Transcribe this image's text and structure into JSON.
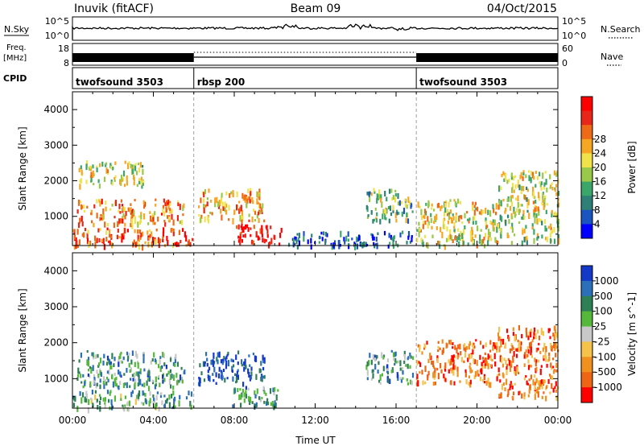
{
  "header": {
    "title": "Inuvik (fitACF)",
    "beam": "Beam 09",
    "date": "04/Oct/2015"
  },
  "top_panels": {
    "nsky": {
      "label": "N.Sky",
      "left_ticks": [
        "10^5",
        "10^0"
      ],
      "right_label": "N.Search",
      "right_ticks": [
        "10^5",
        "10^0"
      ]
    },
    "freq": {
      "label_line1": "Freq.",
      "label_line2": "[MHz]",
      "left_ticks": [
        "18",
        "8"
      ],
      "right_label": "Nave",
      "right_ticks": [
        "60",
        "0"
      ]
    },
    "cpid": {
      "label": "CPID",
      "segments": [
        {
          "name": "twofsound 3503",
          "start_hour": 0
        },
        {
          "name": "rbsp 200",
          "start_hour": 6
        },
        {
          "name": "twofsound 3503",
          "start_hour": 17
        }
      ]
    }
  },
  "chart_data": [
    {
      "type": "heatmap",
      "name": "power",
      "ylabel": "Slant Range [km]",
      "xlabel": "",
      "x_range_hours": [
        0,
        24
      ],
      "ylim": [
        180,
        4500
      ],
      "y_ticks": [
        1000,
        2000,
        3000,
        4000
      ],
      "colorbar": {
        "label": "Power [dB]",
        "ticks": [
          "4",
          "8",
          "12",
          "16",
          "20",
          "24",
          "28"
        ],
        "colors": [
          "#0000ff",
          "#1a54c0",
          "#2e7f76",
          "#3ca56a",
          "#9ac94a",
          "#f2e24a",
          "#f5a623",
          "#ef6a17",
          "#e8271a",
          "#ff0000"
        ]
      },
      "regions": [
        {
          "t0": 0.0,
          "t1": 5.9,
          "r0": 200,
          "r1": 700,
          "level": 0.8
        },
        {
          "t0": 0.2,
          "t1": 5.5,
          "r0": 800,
          "r1": 1500,
          "level": 0.7
        },
        {
          "t0": 0.3,
          "t1": 3.5,
          "r0": 1900,
          "r1": 2600,
          "level": 0.5
        },
        {
          "t0": 6.2,
          "t1": 9.5,
          "r0": 900,
          "r1": 1800,
          "level": 0.65
        },
        {
          "t0": 7.8,
          "t1": 10.3,
          "r0": 250,
          "r1": 800,
          "level": 0.95
        },
        {
          "t0": 10.5,
          "t1": 16.8,
          "r0": 200,
          "r1": 600,
          "level": 0.15
        },
        {
          "t0": 14.5,
          "t1": 16.8,
          "r0": 900,
          "r1": 1800,
          "level": 0.4
        },
        {
          "t0": 17.0,
          "t1": 21.0,
          "r0": 200,
          "r1": 1500,
          "level": 0.55
        },
        {
          "t0": 21.0,
          "t1": 24.0,
          "r0": 300,
          "r1": 2300,
          "level": 0.5
        }
      ]
    },
    {
      "type": "heatmap",
      "name": "velocity",
      "ylabel": "Slant Range [km]",
      "xlabel": "Time UT",
      "x_range_hours": [
        0,
        24
      ],
      "x_ticks": [
        "00:00",
        "04:00",
        "08:00",
        "12:00",
        "16:00",
        "20:00",
        "00:00"
      ],
      "ylim": [
        180,
        4500
      ],
      "y_ticks": [
        1000,
        2000,
        3000,
        4000
      ],
      "colorbar": {
        "label": "Velocity [m s^-1]",
        "ticks": [
          "1000",
          "500",
          "100",
          "25",
          "-25",
          "-100",
          "-500",
          "-1000"
        ],
        "colors": [
          "#1438c8",
          "#2a6fb8",
          "#2e7f56",
          "#55b83a",
          "#c8c8c8",
          "#f5c24a",
          "#f0901e",
          "#ee6614",
          "#ff0000"
        ]
      },
      "regions": [
        {
          "t0": 0.0,
          "t1": 5.9,
          "r0": 200,
          "r1": 700,
          "level": 0.35
        },
        {
          "t0": 0.2,
          "t1": 5.5,
          "r0": 800,
          "r1": 1800,
          "level": 0.3
        },
        {
          "t0": 6.2,
          "t1": 9.5,
          "r0": 900,
          "r1": 1800,
          "level": 0.1
        },
        {
          "t0": 7.8,
          "t1": 10.3,
          "r0": 250,
          "r1": 800,
          "level": 0.3
        },
        {
          "t0": 14.5,
          "t1": 16.8,
          "r0": 900,
          "r1": 1800,
          "level": 0.3
        },
        {
          "t0": 17.0,
          "t1": 21.0,
          "r0": 900,
          "r1": 2100,
          "level": 0.8
        },
        {
          "t0": 21.0,
          "t1": 24.0,
          "r0": 500,
          "r1": 2500,
          "level": 0.8
        }
      ]
    }
  ]
}
